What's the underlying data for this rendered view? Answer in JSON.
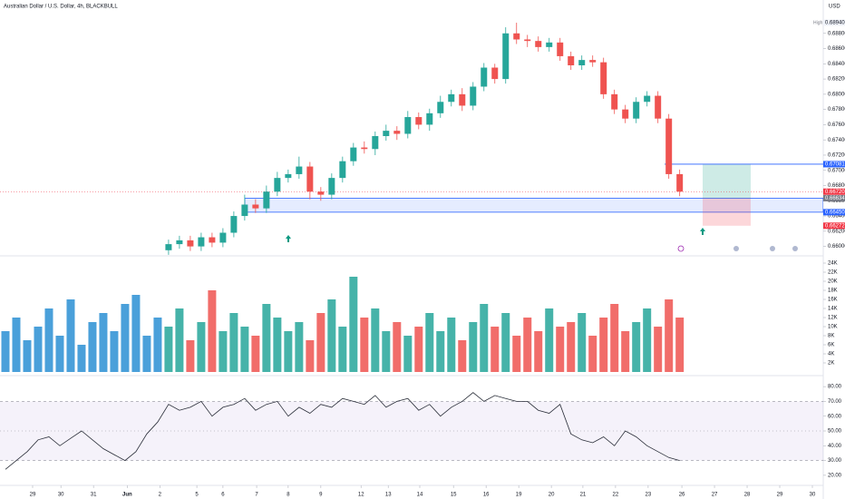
{
  "chart_data": [
    {
      "type": "candlestick",
      "title": "Australian Dollar / U.S. Dollar, 4h, BLACKBULL",
      "currency": "USD",
      "up_color": "#26a69a",
      "down_color": "#ef5350",
      "open": [
        null,
        null,
        null,
        null,
        null,
        null,
        null,
        null,
        null,
        null,
        null,
        null,
        null,
        null,
        null,
        0.6595,
        0.6603,
        0.6608,
        0.66,
        0.6612,
        0.6605,
        0.6618,
        0.664,
        0.6655,
        0.665,
        0.6672,
        0.669,
        0.6695,
        0.6705,
        0.6672,
        0.6668,
        0.669,
        0.6712,
        0.673,
        0.6728,
        0.6745,
        0.6752,
        0.6748,
        0.677,
        0.676,
        0.6775,
        0.679,
        0.68,
        0.6785,
        0.681,
        0.6835,
        0.682,
        0.688,
        0.6872,
        0.687,
        0.6862,
        0.6868,
        0.685,
        0.6838,
        0.6845,
        0.6842,
        0.68,
        0.678,
        0.6768,
        0.679,
        0.6798,
        0.6768,
        0.6695
      ],
      "high": [
        null,
        null,
        null,
        null,
        null,
        null,
        null,
        null,
        null,
        null,
        null,
        null,
        null,
        null,
        null,
        0.6609,
        0.6614,
        0.6614,
        0.6618,
        0.6618,
        0.6624,
        0.6646,
        0.6668,
        0.6662,
        0.668,
        0.6698,
        0.6701,
        0.6718,
        0.6711,
        0.6678,
        0.6696,
        0.6718,
        0.6736,
        0.6738,
        0.6751,
        0.676,
        0.6758,
        0.6778,
        0.6776,
        0.6781,
        0.6798,
        0.6806,
        0.6808,
        0.6816,
        0.6841,
        0.684,
        0.6888,
        0.6894,
        0.6878,
        0.6876,
        0.6874,
        0.6874,
        0.6856,
        0.6851,
        0.6851,
        0.6848,
        0.6806,
        0.6786,
        0.6796,
        0.6804,
        0.6804,
        0.6774,
        0.6701
      ],
      "low": [
        null,
        null,
        null,
        null,
        null,
        null,
        null,
        null,
        null,
        null,
        null,
        null,
        null,
        null,
        null,
        0.6589,
        0.6597,
        0.6594,
        0.6594,
        0.6599,
        0.6599,
        0.6612,
        0.6634,
        0.6644,
        0.6644,
        0.6666,
        0.6684,
        0.6689,
        0.6662,
        0.666,
        0.6662,
        0.6684,
        0.6706,
        0.6722,
        0.672,
        0.6739,
        0.674,
        0.6742,
        0.6754,
        0.6752,
        0.6769,
        0.6784,
        0.6778,
        0.6779,
        0.6804,
        0.6814,
        0.6814,
        0.6866,
        0.6862,
        0.6856,
        0.6856,
        0.6844,
        0.6832,
        0.6832,
        0.6836,
        0.6794,
        0.6774,
        0.6762,
        0.6762,
        0.6784,
        0.6762,
        0.6689,
        0.6666
      ],
      "close": [
        null,
        null,
        null,
        null,
        null,
        null,
        null,
        null,
        null,
        null,
        null,
        null,
        null,
        null,
        null,
        0.6603,
        0.6608,
        0.66,
        0.6612,
        0.6605,
        0.6618,
        0.664,
        0.6655,
        0.665,
        0.6672,
        0.669,
        0.6695,
        0.6705,
        0.6672,
        0.6668,
        0.669,
        0.6712,
        0.673,
        0.6728,
        0.6745,
        0.6752,
        0.6748,
        0.677,
        0.676,
        0.6775,
        0.679,
        0.68,
        0.6785,
        0.681,
        0.6835,
        0.682,
        0.688,
        0.6872,
        0.687,
        0.6862,
        0.6868,
        0.685,
        0.6838,
        0.6845,
        0.6842,
        0.68,
        0.678,
        0.6768,
        0.679,
        0.6798,
        0.6768,
        0.6695,
        0.6672
      ],
      "xlim": [
        -0.5,
        75.2
      ],
      "ylim": [
        0.659,
        0.69
      ],
      "yticks": [
        {
          "value": 0.66,
          "label": "0.66000"
        },
        {
          "value": 0.662,
          "label": "0.66200"
        },
        {
          "value": 0.664,
          "label": "0.66400"
        },
        {
          "value": 0.666,
          "label": "0.66600"
        },
        {
          "value": 0.668,
          "label": "0.66800"
        },
        {
          "value": 0.67,
          "label": "0.67000"
        },
        {
          "value": 0.672,
          "label": "0.67200"
        },
        {
          "value": 0.674,
          "label": "0.67400"
        },
        {
          "value": 0.676,
          "label": "0.67600"
        },
        {
          "value": 0.678,
          "label": "0.67800"
        },
        {
          "value": 0.68,
          "label": "0.68000"
        },
        {
          "value": 0.682,
          "label": "0.68200"
        },
        {
          "value": 0.684,
          "label": "0.68400"
        },
        {
          "value": 0.686,
          "label": "0.68600"
        },
        {
          "value": 0.688,
          "label": "0.68800"
        }
      ],
      "high_marker": {
        "name": "High",
        "value": 0.6894,
        "label": "0.68940"
      },
      "levels": [
        {
          "value": 0.67081,
          "label": "0.67081",
          "color": "#2962ff"
        },
        {
          "value": 0.6672,
          "label": "0.66720",
          "color": "#f23645"
        },
        {
          "value": 0.66634,
          "label": "0.66634",
          "color": "#787b86"
        },
        {
          "value": 0.6645,
          "label": "0.66450",
          "color": "#2962ff"
        },
        {
          "value": 0.66272,
          "label": "0.66272",
          "color": "#f23645"
        }
      ]
    },
    {
      "type": "bar",
      "color": "#2a8fd4",
      "values": [
        9000,
        12000,
        7000,
        10000,
        14000,
        8000,
        16000,
        6000,
        11000,
        13000,
        9000,
        15000,
        17000,
        8000,
        12000,
        10000,
        14000,
        7000,
        11000,
        18000,
        9000,
        13000,
        10000,
        8000,
        15000,
        12000,
        9000,
        11000,
        7000,
        13000,
        16000,
        10000,
        21000,
        12000,
        14000,
        9000,
        11000,
        8000,
        10000,
        13000,
        9000,
        12000,
        7000,
        11000,
        15000,
        10000,
        13000,
        8000,
        12000,
        9000,
        14000,
        10000,
        11000,
        13000,
        8000,
        12000,
        15000,
        9000,
        11000,
        14000,
        10000,
        16000,
        12000
      ],
      "ylim": [
        0,
        25000
      ],
      "yticks": [
        {
          "value": 2000,
          "label": "2K"
        },
        {
          "value": 4000,
          "label": "4K"
        },
        {
          "value": 6000,
          "label": "6K"
        },
        {
          "value": 8000,
          "label": "8K"
        },
        {
          "value": 10000,
          "label": "10K"
        },
        {
          "value": 12000,
          "label": "12K"
        },
        {
          "value": 14000,
          "label": "14K"
        },
        {
          "value": 16000,
          "label": "16K"
        },
        {
          "value": 18000,
          "label": "18K"
        },
        {
          "value": 20000,
          "label": "20K"
        },
        {
          "value": 22000,
          "label": "22K"
        },
        {
          "value": 24000,
          "label": "24K"
        }
      ]
    },
    {
      "type": "line",
      "color": "#2a2e39",
      "band_color": "#7e57c2",
      "values": [
        24,
        30,
        36,
        44,
        46,
        40,
        45,
        50,
        44,
        38,
        34,
        30,
        36,
        48,
        56,
        68,
        64,
        66,
        70,
        60,
        66,
        68,
        72,
        64,
        68,
        70,
        60,
        66,
        62,
        68,
        66,
        72,
        70,
        68,
        74,
        66,
        70,
        72,
        64,
        68,
        60,
        66,
        70,
        76,
        70,
        74,
        72,
        70,
        70,
        64,
        62,
        68,
        48,
        44,
        42,
        46,
        40,
        50,
        46,
        40,
        36,
        32,
        30
      ],
      "band": [
        30,
        70
      ],
      "midline": 50,
      "ylim": [
        15,
        85
      ],
      "yticks": [
        {
          "value": 20,
          "label": "20.00"
        },
        {
          "value": 30,
          "label": "30.00"
        },
        {
          "value": 40,
          "label": "40.00"
        },
        {
          "value": 50,
          "label": "50.00"
        },
        {
          "value": 60,
          "label": "60.00"
        },
        {
          "value": 70,
          "label": "70.00"
        },
        {
          "value": 80,
          "label": "80.00"
        }
      ],
      "xlim": [
        -0.5,
        75.2
      ],
      "xticks": [
        {
          "value": 2.5,
          "label": "29"
        },
        {
          "value": 5.1,
          "label": "30"
        },
        {
          "value": 8.1,
          "label": "31"
        },
        {
          "value": 11.2,
          "label": "Jun"
        },
        {
          "value": 14.2,
          "label": "2"
        },
        {
          "value": 17.6,
          "label": "5"
        },
        {
          "value": 20,
          "label": "6"
        },
        {
          "value": 23.1,
          "label": "7"
        },
        {
          "value": 26,
          "label": "8"
        },
        {
          "value": 29,
          "label": "9"
        },
        {
          "value": 32.7,
          "label": "12"
        },
        {
          "value": 35.2,
          "label": "13"
        },
        {
          "value": 38.1,
          "label": "14"
        },
        {
          "value": 41.2,
          "label": "15"
        },
        {
          "value": 44.2,
          "label": "16"
        },
        {
          "value": 47.2,
          "label": "19"
        },
        {
          "value": 50.2,
          "label": "20"
        },
        {
          "value": 53.1,
          "label": "21"
        },
        {
          "value": 56.1,
          "label": "22"
        },
        {
          "value": 59.1,
          "label": "23"
        },
        {
          "value": 62.2,
          "label": "26"
        },
        {
          "value": 65.2,
          "label": "27"
        },
        {
          "value": 68.2,
          "label": "28"
        },
        {
          "value": 71.2,
          "label": "29"
        },
        {
          "value": 74.2,
          "label": "30"
        }
      ]
    }
  ]
}
